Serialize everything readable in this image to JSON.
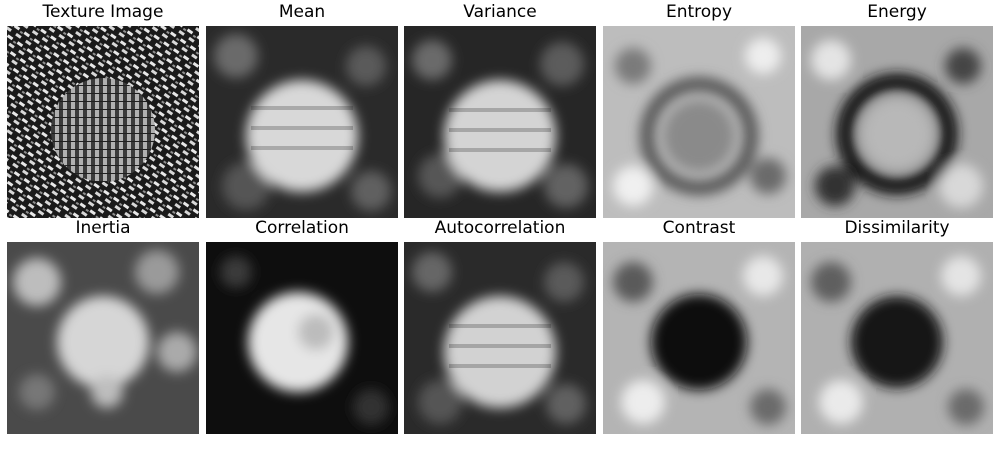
{
  "figure": {
    "rows": [
      {
        "panels": [
          {
            "title": "Texture Image",
            "pattern": "texture"
          },
          {
            "title": "Mean",
            "pattern": "bright-disk"
          },
          {
            "title": "Variance",
            "pattern": "bright-disk"
          },
          {
            "title": "Entropy",
            "pattern": "dark-ring"
          },
          {
            "title": "Energy",
            "pattern": "dark-ring-strong"
          }
        ]
      },
      {
        "panels": [
          {
            "title": "Inertia",
            "pattern": "soft-disk"
          },
          {
            "title": "Correlation",
            "pattern": "bright-disk-dark-bg"
          },
          {
            "title": "Autocorrelation",
            "pattern": "bright-disk"
          },
          {
            "title": "Contrast",
            "pattern": "dark-disk"
          },
          {
            "title": "Dissimilarity",
            "pattern": "dark-disk"
          }
        ]
      }
    ]
  }
}
